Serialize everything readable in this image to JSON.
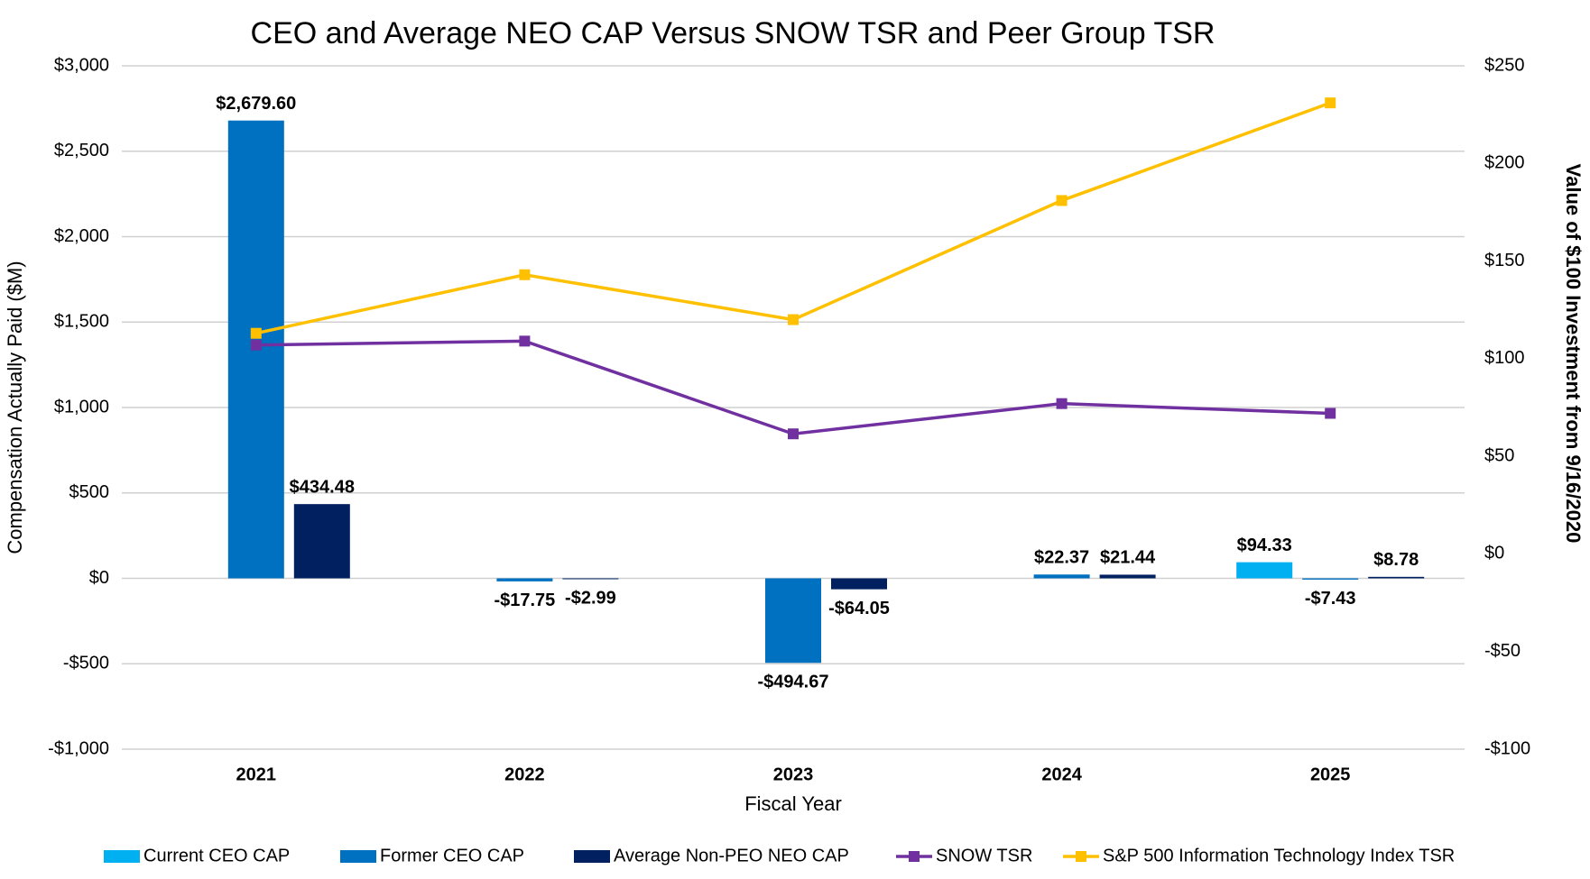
{
  "chart_data": {
    "type": "bar-line",
    "title": "CEO and Average NEO CAP Versus SNOW TSR and Peer Group TSR",
    "x_label": "Fiscal Year",
    "y_label": "Compensation Actually Paid ($M)",
    "y2_label": "Value of $100 Investment from 9/16/2020",
    "categories": [
      "2021",
      "2022",
      "2023",
      "2024",
      "2025"
    ],
    "ylim": [
      -1000,
      3000
    ],
    "yticks": [
      {
        "value": -1000,
        "label": "-$1,000"
      },
      {
        "value": -500,
        "label": "-$500"
      },
      {
        "value": 0,
        "label": "$0"
      },
      {
        "value": 500,
        "label": "$500"
      },
      {
        "value": 1000,
        "label": "$1,000"
      },
      {
        "value": 1500,
        "label": "$1,500"
      },
      {
        "value": 2000,
        "label": "$2,000"
      },
      {
        "value": 2500,
        "label": "$2,500"
      },
      {
        "value": 3000,
        "label": "$3,000"
      }
    ],
    "y2lim": [
      -100,
      250
    ],
    "y2ticks": [
      {
        "value": -100,
        "label": "-$100"
      },
      {
        "value": -50,
        "label": "-$50"
      },
      {
        "value": 0,
        "label": "$0"
      },
      {
        "value": 50,
        "label": "$50"
      },
      {
        "value": 100,
        "label": "$100"
      },
      {
        "value": 150,
        "label": "$150"
      },
      {
        "value": 200,
        "label": "$200"
      },
      {
        "value": 250,
        "label": "$250"
      }
    ],
    "grid": true,
    "legend": "bottom",
    "negative_label_color": "#ff0000",
    "series": [
      {
        "name": "Current CEO CAP",
        "type": "bar",
        "color": "#00b0f0",
        "values": [
          null,
          null,
          null,
          null,
          94.33
        ],
        "value_labels": [
          null,
          null,
          null,
          null,
          "$94.33"
        ]
      },
      {
        "name": "Former CEO CAP",
        "type": "bar",
        "color": "#0070c0",
        "values": [
          2679.6,
          -17.75,
          -494.67,
          22.37,
          -7.43
        ],
        "value_labels": [
          "$2,679.60",
          "-$17.75",
          "-$494.67",
          "$22.37",
          "-$7.43"
        ]
      },
      {
        "name": "Average Non-PEO NEO CAP",
        "type": "bar",
        "color": "#002060",
        "values": [
          434.48,
          -2.99,
          -64.05,
          21.44,
          8.78
        ],
        "value_labels": [
          "$434.48",
          "-$2.99",
          "-$64.05",
          "$21.44",
          "$8.78"
        ]
      },
      {
        "name": "SNOW TSR",
        "type": "line",
        "axis": "y2",
        "color": "#7030a0",
        "values": [
          107,
          109,
          61.5,
          77,
          72
        ]
      },
      {
        "name": "S&P 500 Information Technology Index TSR",
        "type": "line",
        "axis": "y2",
        "color": "#ffc000",
        "values": [
          113,
          143,
          120,
          181,
          231
        ]
      }
    ]
  }
}
